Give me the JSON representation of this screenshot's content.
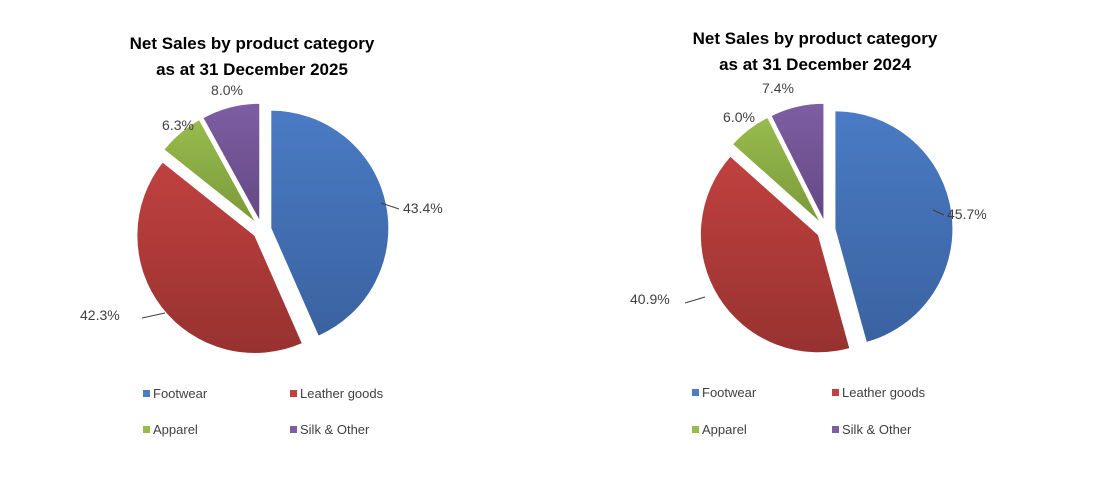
{
  "chart_data": [
    {
      "type": "pie",
      "title_lines": [
        "Net Sales by product  category",
        "as at 31 December 2025"
      ],
      "categories": [
        "Footwear",
        "Leather goods",
        "Apparel",
        "Silk & Other"
      ],
      "values": [
        43.4,
        42.3,
        6.3,
        8.0
      ],
      "labels": [
        "43.4%",
        "42.3%",
        "6.3%",
        "8.0%"
      ],
      "exploded": true,
      "legend_position": "bottom"
    },
    {
      "type": "pie",
      "title_lines": [
        "Net Sales by product  category",
        "as at 31 December 2024"
      ],
      "categories": [
        "Footwear",
        "Leather goods",
        "Apparel",
        "Silk & Other"
      ],
      "values": [
        45.7,
        40.9,
        6.0,
        7.4
      ],
      "labels": [
        "45.7%",
        "40.9%",
        "6.0%",
        "7.4%"
      ],
      "exploded": true,
      "legend_position": "bottom"
    }
  ],
  "colors": {
    "Footwear": "#4a7bc4",
    "Leather goods": "#c0413f",
    "Apparel": "#98bb4d",
    "Silk & Other": "#7e5ea3"
  },
  "colors_dark": {
    "Footwear": "#3a62a0",
    "Leather goods": "#973230",
    "Apparel": "#7a9a3a",
    "Silk & Other": "#634884"
  }
}
